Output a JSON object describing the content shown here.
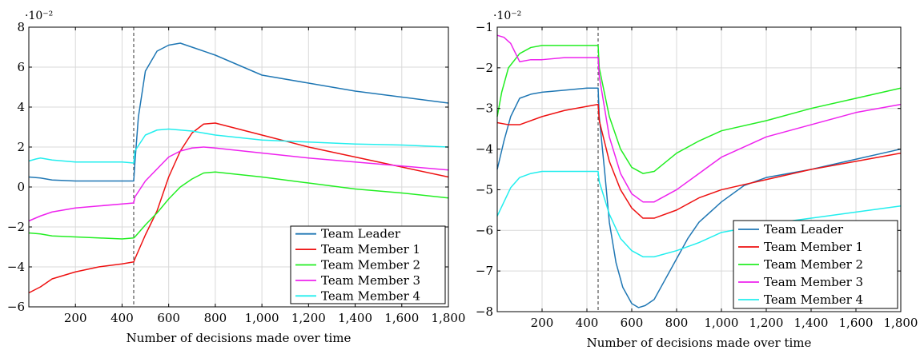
{
  "chart_data": [
    {
      "type": "line",
      "title": "",
      "xlabel": "Number of decisions made over time",
      "ylabel": "",
      "y_exponent": "·10⁻²",
      "xlim": [
        0,
        1800
      ],
      "ylim": [
        -6,
        8
      ],
      "xticks": [
        200,
        400,
        600,
        800,
        1000,
        1200,
        1400,
        1600,
        1800
      ],
      "xtick_labels": [
        "200",
        "400",
        "600",
        "800",
        "1,000",
        "1,200",
        "1,400",
        "1,600",
        "1,800"
      ],
      "yticks": [
        -6,
        -4,
        -2,
        0,
        2,
        4,
        6,
        8
      ],
      "ytick_labels": [
        "−6",
        "−4",
        "−2",
        "0",
        "2",
        "4",
        "6",
        "8"
      ],
      "grid": true,
      "vline_x": 450,
      "legend_position": "bottom-right",
      "series": [
        {
          "name": "Team Leader",
          "color": "#1f77b4",
          "x": [
            0,
            50,
            100,
            200,
            300,
            400,
            450,
            455,
            470,
            500,
            550,
            600,
            650,
            700,
            800,
            1000,
            1200,
            1400,
            1600,
            1800
          ],
          "y": [
            0.5,
            0.45,
            0.35,
            0.3,
            0.3,
            0.3,
            0.3,
            1.2,
            3.5,
            5.8,
            6.8,
            7.1,
            7.2,
            7.0,
            6.6,
            5.6,
            5.2,
            4.8,
            4.5,
            4.2
          ]
        },
        {
          "name": "Team Member 1",
          "color": "#ee1111",
          "x": [
            0,
            50,
            100,
            200,
            300,
            400,
            450,
            455,
            500,
            550,
            600,
            650,
            700,
            750,
            800,
            900,
            1000,
            1200,
            1400,
            1600,
            1800
          ],
          "y": [
            -5.3,
            -5.0,
            -4.6,
            -4.25,
            -4.0,
            -3.85,
            -3.75,
            -3.6,
            -2.4,
            -1.2,
            0.5,
            1.8,
            2.7,
            3.15,
            3.2,
            2.9,
            2.6,
            2.0,
            1.5,
            1.0,
            0.5
          ]
        },
        {
          "name": "Team Member 2",
          "color": "#22ee22",
          "x": [
            0,
            50,
            100,
            200,
            300,
            400,
            450,
            455,
            500,
            550,
            600,
            650,
            700,
            750,
            800,
            1000,
            1200,
            1400,
            1600,
            1800
          ],
          "y": [
            -2.3,
            -2.35,
            -2.45,
            -2.5,
            -2.55,
            -2.6,
            -2.55,
            -2.5,
            -1.9,
            -1.3,
            -0.6,
            0.0,
            0.4,
            0.7,
            0.75,
            0.5,
            0.2,
            -0.1,
            -0.3,
            -0.55
          ]
        },
        {
          "name": "Team Member 3",
          "color": "#ee22ee",
          "x": [
            0,
            50,
            100,
            200,
            300,
            400,
            450,
            455,
            500,
            550,
            600,
            650,
            700,
            750,
            800,
            1000,
            1200,
            1400,
            1600,
            1800
          ],
          "y": [
            -1.7,
            -1.45,
            -1.25,
            -1.05,
            -0.95,
            -0.85,
            -0.8,
            -0.5,
            0.3,
            0.9,
            1.5,
            1.8,
            1.95,
            2.0,
            1.95,
            1.7,
            1.45,
            1.25,
            1.05,
            0.85
          ]
        },
        {
          "name": "Team Member 4",
          "color": "#22eeee",
          "x": [
            0,
            30,
            50,
            100,
            200,
            300,
            400,
            450,
            455,
            500,
            550,
            600,
            700,
            800,
            1000,
            1200,
            1400,
            1600,
            1800
          ],
          "y": [
            1.3,
            1.4,
            1.45,
            1.35,
            1.25,
            1.25,
            1.25,
            1.2,
            1.8,
            2.6,
            2.85,
            2.9,
            2.8,
            2.6,
            2.35,
            2.25,
            2.15,
            2.1,
            2.0
          ]
        }
      ]
    },
    {
      "type": "line",
      "title": "",
      "xlabel": "Number of decisions made over time",
      "ylabel": "",
      "y_exponent": "·10⁻²",
      "xlim": [
        0,
        1800
      ],
      "ylim": [
        -8,
        -1
      ],
      "xticks": [
        200,
        400,
        600,
        800,
        1000,
        1200,
        1400,
        1600,
        1800
      ],
      "xtick_labels": [
        "200",
        "400",
        "600",
        "800",
        "1,000",
        "1,200",
        "1,400",
        "1,600",
        "1,800"
      ],
      "yticks": [
        -8,
        -7,
        -6,
        -5,
        -4,
        -3,
        -2,
        -1
      ],
      "ytick_labels": [
        "−8",
        "−7",
        "−6",
        "−5",
        "−4",
        "−3",
        "−2",
        "−1"
      ],
      "grid": true,
      "vline_x": 450,
      "legend_position": "bottom-right",
      "series": [
        {
          "name": "Team Leader",
          "color": "#1f77b4",
          "x": [
            0,
            30,
            60,
            100,
            150,
            200,
            300,
            400,
            450,
            455,
            480,
            500,
            530,
            560,
            600,
            630,
            660,
            700,
            750,
            800,
            850,
            900,
            1000,
            1100,
            1200,
            1400,
            1600,
            1800
          ],
          "y": [
            -4.5,
            -3.8,
            -3.2,
            -2.75,
            -2.65,
            -2.6,
            -2.55,
            -2.5,
            -2.5,
            -3.2,
            -4.6,
            -5.8,
            -6.8,
            -7.4,
            -7.8,
            -7.9,
            -7.85,
            -7.7,
            -7.2,
            -6.7,
            -6.2,
            -5.8,
            -5.3,
            -4.9,
            -4.7,
            -4.5,
            -4.25,
            -4.0
          ]
        },
        {
          "name": "Team Member 1",
          "color": "#ee1111",
          "x": [
            0,
            50,
            100,
            200,
            300,
            400,
            450,
            455,
            500,
            550,
            600,
            650,
            700,
            800,
            900,
            1000,
            1200,
            1400,
            1600,
            1800
          ],
          "y": [
            -3.35,
            -3.4,
            -3.4,
            -3.2,
            -3.05,
            -2.95,
            -2.9,
            -3.3,
            -4.3,
            -5.0,
            -5.45,
            -5.7,
            -5.7,
            -5.5,
            -5.2,
            -5.0,
            -4.75,
            -4.5,
            -4.3,
            -4.1
          ]
        },
        {
          "name": "Team Member 2",
          "color": "#22ee22",
          "x": [
            0,
            20,
            50,
            100,
            150,
            200,
            300,
            400,
            450,
            455,
            500,
            550,
            600,
            650,
            700,
            800,
            900,
            1000,
            1200,
            1400,
            1600,
            1800
          ],
          "y": [
            -3.2,
            -2.6,
            -2.0,
            -1.65,
            -1.5,
            -1.45,
            -1.45,
            -1.45,
            -1.45,
            -2.0,
            -3.2,
            -4.0,
            -4.45,
            -4.6,
            -4.55,
            -4.1,
            -3.8,
            -3.55,
            -3.3,
            -3.0,
            -2.75,
            -2.5
          ]
        },
        {
          "name": "Team Member 3",
          "color": "#ee22ee",
          "x": [
            0,
            30,
            60,
            100,
            150,
            200,
            300,
            400,
            450,
            455,
            500,
            550,
            600,
            650,
            700,
            800,
            900,
            1000,
            1200,
            1400,
            1600,
            1800
          ],
          "y": [
            -1.2,
            -1.25,
            -1.4,
            -1.85,
            -1.8,
            -1.8,
            -1.75,
            -1.75,
            -1.75,
            -2.2,
            -3.7,
            -4.6,
            -5.1,
            -5.3,
            -5.3,
            -5.0,
            -4.6,
            -4.2,
            -3.7,
            -3.4,
            -3.1,
            -2.9
          ]
        },
        {
          "name": "Team Member 4",
          "color": "#22eeee",
          "x": [
            0,
            30,
            60,
            100,
            150,
            200,
            300,
            400,
            450,
            455,
            500,
            550,
            600,
            650,
            700,
            800,
            900,
            1000,
            1200,
            1400,
            1600,
            1800
          ],
          "y": [
            -5.65,
            -5.3,
            -4.95,
            -4.7,
            -4.6,
            -4.55,
            -4.55,
            -4.55,
            -4.55,
            -4.8,
            -5.6,
            -6.2,
            -6.5,
            -6.65,
            -6.65,
            -6.5,
            -6.3,
            -6.05,
            -5.85,
            -5.7,
            -5.55,
            -5.4
          ]
        }
      ]
    }
  ]
}
